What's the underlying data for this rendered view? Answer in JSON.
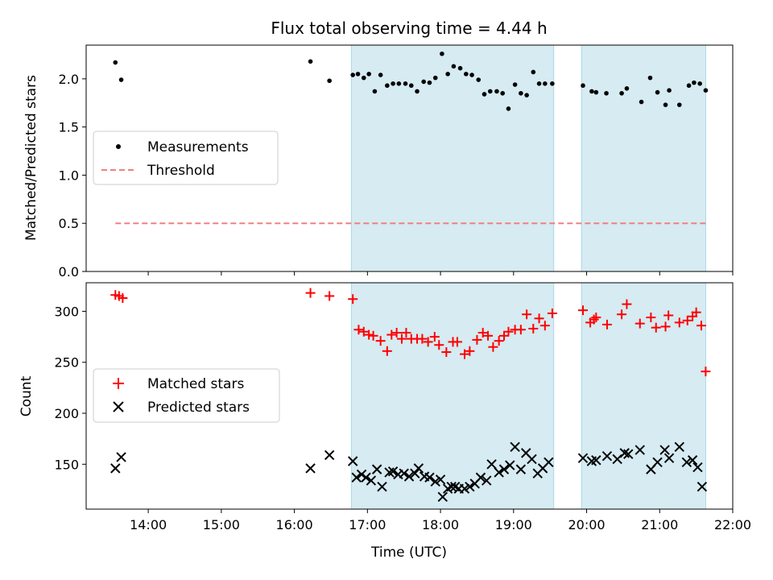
{
  "chart_data": [
    {
      "type": "scatter",
      "title": "Flux total observing time = 4.44 h",
      "ylabel": "Matched/Predicted stars",
      "xlim": [
        13.15,
        22.0
      ],
      "ylim": [
        0,
        2.35
      ],
      "yticks": [
        0.0,
        0.5,
        1.0,
        1.5,
        2.0
      ],
      "ytick_labels": [
        "0.0",
        "0.5",
        "1.0",
        "1.5",
        "2.0"
      ],
      "legend_position": "center-left",
      "shaded_intervals": [
        [
          16.78,
          19.55
        ],
        [
          19.93,
          21.63
        ]
      ],
      "threshold": {
        "name": "Threshold",
        "y": 0.5,
        "x": [
          13.55,
          21.63
        ],
        "color": "#f08080"
      },
      "measurements": {
        "name": "Measurements",
        "color": "#000000",
        "x": [
          13.55,
          13.63,
          16.22,
          16.48,
          16.8,
          16.87,
          16.95,
          17.02,
          17.1,
          17.18,
          17.27,
          17.35,
          17.43,
          17.52,
          17.6,
          17.68,
          17.77,
          17.85,
          17.93,
          18.02,
          18.1,
          18.18,
          18.27,
          18.35,
          18.43,
          18.52,
          18.6,
          18.68,
          18.77,
          18.85,
          18.93,
          19.02,
          19.1,
          19.18,
          19.27,
          19.35,
          19.43,
          19.53,
          19.95,
          20.07,
          20.13,
          20.27,
          20.48,
          20.55,
          20.75,
          20.87,
          20.97,
          21.08,
          21.13,
          21.27,
          21.4,
          21.47,
          21.55,
          21.63
        ],
        "y": [
          2.17,
          1.99,
          2.18,
          1.98,
          2.04,
          2.05,
          2.01,
          2.05,
          1.87,
          2.04,
          1.93,
          1.95,
          1.95,
          1.95,
          1.93,
          1.87,
          1.97,
          1.96,
          2.01,
          2.26,
          2.05,
          2.13,
          2.11,
          2.05,
          2.04,
          1.99,
          1.84,
          1.87,
          1.87,
          1.85,
          1.69,
          1.94,
          1.85,
          1.83,
          2.07,
          1.95,
          1.95,
          1.95,
          1.93,
          1.87,
          1.86,
          1.85,
          1.85,
          1.9,
          1.76,
          2.01,
          1.86,
          1.73,
          1.88,
          1.73,
          1.93,
          1.96,
          1.95,
          1.88
        ]
      }
    },
    {
      "type": "scatter",
      "xlabel": "Time (UTC)",
      "ylabel": "Count",
      "xlim": [
        13.15,
        22.0
      ],
      "ylim": [
        106,
        328
      ],
      "xticks": [
        14,
        15,
        16,
        17,
        18,
        19,
        20,
        21,
        22
      ],
      "xtick_labels": [
        "14:00",
        "15:00",
        "16:00",
        "17:00",
        "18:00",
        "19:00",
        "20:00",
        "21:00",
        "22:00"
      ],
      "yticks": [
        150,
        200,
        250,
        300
      ],
      "ytick_labels": [
        "150",
        "200",
        "250",
        "300"
      ],
      "legend_position": "center-left",
      "shaded_intervals": [
        [
          16.78,
          19.55
        ],
        [
          19.93,
          21.63
        ]
      ],
      "series": [
        {
          "name": "Matched stars",
          "marker": "+",
          "color": "#ff0000",
          "x": [
            13.55,
            13.6,
            13.65,
            16.22,
            16.48,
            16.8,
            16.88,
            16.95,
            17.02,
            17.08,
            17.18,
            17.27,
            17.33,
            17.4,
            17.47,
            17.53,
            17.6,
            17.68,
            17.75,
            17.83,
            17.92,
            17.98,
            18.08,
            18.17,
            18.23,
            18.33,
            18.4,
            18.5,
            18.58,
            18.65,
            18.72,
            18.8,
            18.87,
            18.93,
            19.02,
            19.1,
            19.18,
            19.27,
            19.35,
            19.43,
            19.53,
            19.95,
            20.05,
            20.1,
            20.13,
            20.28,
            20.48,
            20.55,
            20.73,
            20.88,
            20.95,
            21.08,
            21.12,
            21.27,
            21.38,
            21.45,
            21.5,
            21.57,
            21.63
          ],
          "y": [
            316,
            315,
            313,
            318,
            315,
            312,
            282,
            280,
            277,
            276,
            271,
            261,
            277,
            279,
            273,
            279,
            273,
            273,
            273,
            270,
            275,
            267,
            260,
            270,
            270,
            258,
            261,
            272,
            279,
            276,
            265,
            271,
            276,
            280,
            282,
            282,
            297,
            283,
            293,
            286,
            298,
            301,
            289,
            292,
            294,
            287,
            297,
            307,
            288,
            294,
            284,
            285,
            296,
            289,
            291,
            295,
            299,
            286,
            241
          ]
        },
        {
          "name": "Predicted stars",
          "marker": "x",
          "color": "#000000",
          "x": [
            13.55,
            13.63,
            16.22,
            16.48,
            16.8,
            16.85,
            16.92,
            16.98,
            17.05,
            17.13,
            17.2,
            17.3,
            17.35,
            17.42,
            17.5,
            17.57,
            17.65,
            17.7,
            17.78,
            17.85,
            17.93,
            18.0,
            18.03,
            18.1,
            18.15,
            18.2,
            18.25,
            18.33,
            18.4,
            18.47,
            18.55,
            18.63,
            18.7,
            18.8,
            18.87,
            18.95,
            19.02,
            19.1,
            19.17,
            19.25,
            19.33,
            19.4,
            19.48,
            19.95,
            20.07,
            20.13,
            20.28,
            20.42,
            20.52,
            20.57,
            20.73,
            20.88,
            20.97,
            21.07,
            21.13,
            21.27,
            21.37,
            21.45,
            21.52,
            21.58
          ],
          "y": [
            146,
            157,
            146,
            159,
            153,
            137,
            140,
            137,
            134,
            145,
            128,
            142,
            143,
            140,
            141,
            138,
            141,
            146,
            138,
            137,
            133,
            135,
            118,
            126,
            128,
            128,
            126,
            126,
            128,
            131,
            137,
            134,
            150,
            142,
            145,
            149,
            167,
            145,
            161,
            155,
            141,
            146,
            152,
            156,
            153,
            154,
            158,
            155,
            161,
            160,
            164,
            145,
            152,
            164,
            156,
            167,
            152,
            154,
            147,
            128
          ]
        }
      ]
    }
  ]
}
